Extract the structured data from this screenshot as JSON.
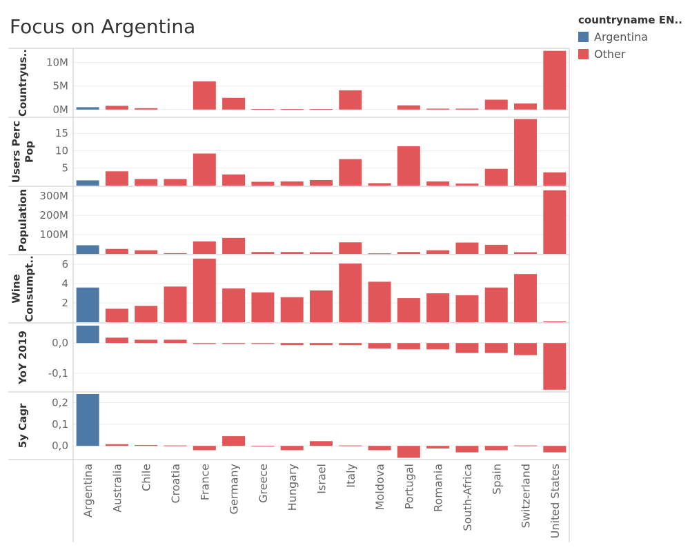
{
  "title": "Focus on Argentina",
  "legend": {
    "title": "countryname EN..",
    "items": [
      {
        "label": "Argentina",
        "color": "#4e79a7"
      },
      {
        "label": "Other",
        "color": "#e15759"
      }
    ]
  },
  "chart_data": {
    "type": "bar",
    "categories": [
      "Argentina",
      "Australia",
      "Chile",
      "Croatia",
      "France",
      "Germany",
      "Greece",
      "Hungary",
      "Israel",
      "Italy",
      "Moldova",
      "Portugal",
      "Romania",
      "South-Africa",
      "Spain",
      "Switzerland",
      "United States"
    ],
    "highlight": "Argentina",
    "colors": {
      "highlight": "#4e79a7",
      "other": "#e15759"
    },
    "panels": [
      {
        "ylabel": [
          "Countryus.."
        ],
        "ylim": [
          -1500000,
          12600000
        ],
        "ticks": [
          {
            "v": 0,
            "label": "0M"
          },
          {
            "v": 5000000,
            "label": "5M"
          },
          {
            "v": 10000000,
            "label": "10M"
          }
        ],
        "values": [
          500000,
          800000,
          300000,
          0,
          6000000,
          2500000,
          100000,
          100000,
          100000,
          4100000,
          0,
          900000,
          200000,
          200000,
          2100000,
          1300000,
          12500000
        ]
      },
      {
        "ylabel": [
          "Users Perc",
          "Pop"
        ],
        "ylim": [
          0,
          19
        ],
        "ticks": [
          {
            "v": 5,
            "label": "5"
          },
          {
            "v": 10,
            "label": "10"
          },
          {
            "v": 15,
            "label": "15"
          }
        ],
        "values": [
          1.5,
          4.1,
          1.9,
          1.9,
          9.2,
          3.2,
          1.1,
          1.2,
          1.6,
          7.6,
          0.7,
          11.3,
          1.2,
          0.6,
          4.8,
          19.1,
          3.8
        ]
      },
      {
        "ylabel": [
          "Population"
        ],
        "ylim": [
          0,
          340000000
        ],
        "ticks": [
          {
            "v": 100000000,
            "label": "100M"
          },
          {
            "v": 200000000,
            "label": "200M"
          },
          {
            "v": 300000000,
            "label": "300M"
          }
        ],
        "values": [
          45000000,
          26000000,
          19000000,
          4000000,
          65000000,
          83000000,
          10000000,
          10000000,
          9000000,
          60000000,
          3000000,
          10000000,
          19000000,
          59000000,
          47000000,
          9000000,
          330000000
        ]
      },
      {
        "ylabel": [
          "Wine",
          "Consumpt.."
        ],
        "ylim": [
          0,
          6.8
        ],
        "ticks": [
          {
            "v": 2,
            "label": "2"
          },
          {
            "v": 4,
            "label": "4"
          },
          {
            "v": 6,
            "label": "6"
          }
        ],
        "values": [
          3.6,
          1.4,
          1.7,
          3.7,
          6.6,
          3.5,
          3.1,
          2.6,
          3.3,
          6.1,
          4.2,
          2.5,
          3.0,
          2.8,
          3.6,
          5.0,
          0.1
        ]
      },
      {
        "ylabel": [
          "YoY 2019"
        ],
        "ylim": [
          -0.16,
          0.06
        ],
        "ticks": [
          {
            "v": -0.1,
            "label": "-0,1"
          },
          {
            "v": 0,
            "label": "0,0"
          }
        ],
        "values": [
          0.058,
          0.018,
          0.011,
          0.011,
          -0.003,
          -0.003,
          -0.003,
          -0.007,
          -0.007,
          -0.007,
          -0.018,
          -0.021,
          -0.021,
          -0.033,
          -0.033,
          -0.04,
          -0.155
        ]
      },
      {
        "ylabel": [
          "5y Cagr"
        ],
        "ylim": [
          -0.06,
          0.24
        ],
        "ticks": [
          {
            "v": 0,
            "label": "0,0"
          },
          {
            "v": 0.1,
            "label": "0,1"
          },
          {
            "v": 0.2,
            "label": "0,2"
          }
        ],
        "values": [
          0.24,
          0.008,
          0.004,
          0.002,
          -0.02,
          0.045,
          -0.002,
          -0.02,
          0.022,
          0.002,
          -0.02,
          -0.055,
          -0.012,
          -0.03,
          -0.02,
          0.002,
          -0.03
        ]
      }
    ]
  }
}
